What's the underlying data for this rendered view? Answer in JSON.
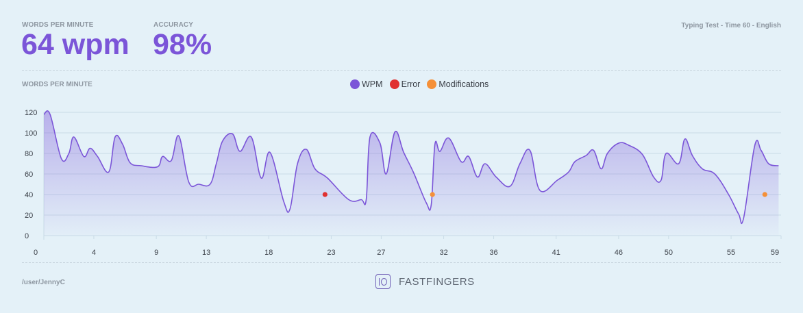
{
  "header": {
    "wpm_label": "WORDS PER MINUTE",
    "wpm_value": "64 wpm",
    "accuracy_label": "ACCURACY",
    "accuracy_value": "98%",
    "test_info": "Typing Test - Time 60 - English"
  },
  "chart_label": "WORDS PER MINUTE",
  "legend": [
    {
      "label": "WPM",
      "color": "#7b55d8"
    },
    {
      "label": "Error",
      "color": "#e03131"
    },
    {
      "label": "Modifications",
      "color": "#f59038"
    }
  ],
  "footer": {
    "user": "/user/JennyC",
    "brand": "FASTFINGERS"
  },
  "colors": {
    "accent": "#7b55d8",
    "error": "#e03131",
    "modification": "#f59038",
    "background": "#e4f1f8"
  },
  "chart_data": {
    "type": "area",
    "title": "",
    "xlabel": "",
    "ylabel": "",
    "xlim": [
      0,
      59
    ],
    "ylim": [
      0,
      120
    ],
    "xticks": [
      0,
      4,
      9,
      13,
      18,
      23,
      27,
      32,
      36,
      41,
      46,
      50,
      55,
      59
    ],
    "yticks": [
      0,
      20,
      40,
      60,
      80,
      100,
      120
    ],
    "grid": true,
    "legend_position": "top-center",
    "series": [
      {
        "name": "WPM",
        "points": [
          [
            0,
            118
          ],
          [
            0.5,
            118
          ],
          [
            1.4,
            75
          ],
          [
            2,
            80
          ],
          [
            2.4,
            96
          ],
          [
            3.2,
            77
          ],
          [
            3.7,
            85
          ],
          [
            4.3,
            77
          ],
          [
            5.2,
            62
          ],
          [
            5.7,
            96
          ],
          [
            6.3,
            89
          ],
          [
            6.9,
            71
          ],
          [
            7.8,
            68
          ],
          [
            9.1,
            67
          ],
          [
            9.5,
            77
          ],
          [
            10.2,
            73
          ],
          [
            10.8,
            97
          ],
          [
            11.6,
            52
          ],
          [
            12.4,
            50
          ],
          [
            13.3,
            50
          ],
          [
            13.8,
            70
          ],
          [
            14.3,
            92
          ],
          [
            15.1,
            99
          ],
          [
            15.7,
            82
          ],
          [
            16.6,
            96
          ],
          [
            17.4,
            56
          ],
          [
            18.1,
            81
          ],
          [
            19.2,
            33
          ],
          [
            19.7,
            26
          ],
          [
            20.3,
            70
          ],
          [
            21,
            84
          ],
          [
            21.7,
            65
          ],
          [
            22.7,
            56
          ],
          [
            24.4,
            35
          ],
          [
            25.4,
            35
          ],
          [
            25.8,
            35
          ],
          [
            26.1,
            96
          ],
          [
            26.9,
            90
          ],
          [
            27.4,
            60
          ],
          [
            28.1,
            101
          ],
          [
            28.8,
            81
          ],
          [
            29.6,
            61
          ],
          [
            30.6,
            32
          ],
          [
            31,
            30
          ],
          [
            31.3,
            89
          ],
          [
            31.7,
            82
          ],
          [
            32.4,
            95
          ],
          [
            33.4,
            72
          ],
          [
            34,
            77
          ],
          [
            34.7,
            57
          ],
          [
            35.3,
            70
          ],
          [
            36.2,
            57
          ],
          [
            37.3,
            48
          ],
          [
            38.1,
            70
          ],
          [
            38.9,
            83
          ],
          [
            39.7,
            44
          ],
          [
            41.1,
            54
          ],
          [
            42,
            62
          ],
          [
            42.5,
            72
          ],
          [
            43.4,
            78
          ],
          [
            44,
            83
          ],
          [
            44.6,
            65
          ],
          [
            45.1,
            80
          ],
          [
            46,
            90
          ],
          [
            46.8,
            88
          ],
          [
            47.9,
            79
          ],
          [
            48.8,
            57
          ],
          [
            49.4,
            54
          ],
          [
            49.8,
            80
          ],
          [
            50.8,
            70
          ],
          [
            51.3,
            94
          ],
          [
            51.9,
            78
          ],
          [
            52.7,
            65
          ],
          [
            53.7,
            60
          ],
          [
            54.8,
            40
          ],
          [
            55.6,
            21
          ],
          [
            56,
            17
          ],
          [
            56.9,
            88
          ],
          [
            57.4,
            83
          ],
          [
            58,
            70
          ],
          [
            58.8,
            68
          ]
        ]
      }
    ],
    "markers": [
      {
        "type": "Error",
        "x": 22.5,
        "y": 40
      },
      {
        "type": "Modifications",
        "x": 31.1,
        "y": 40
      },
      {
        "type": "Modifications",
        "x": 57.7,
        "y": 40
      }
    ]
  }
}
